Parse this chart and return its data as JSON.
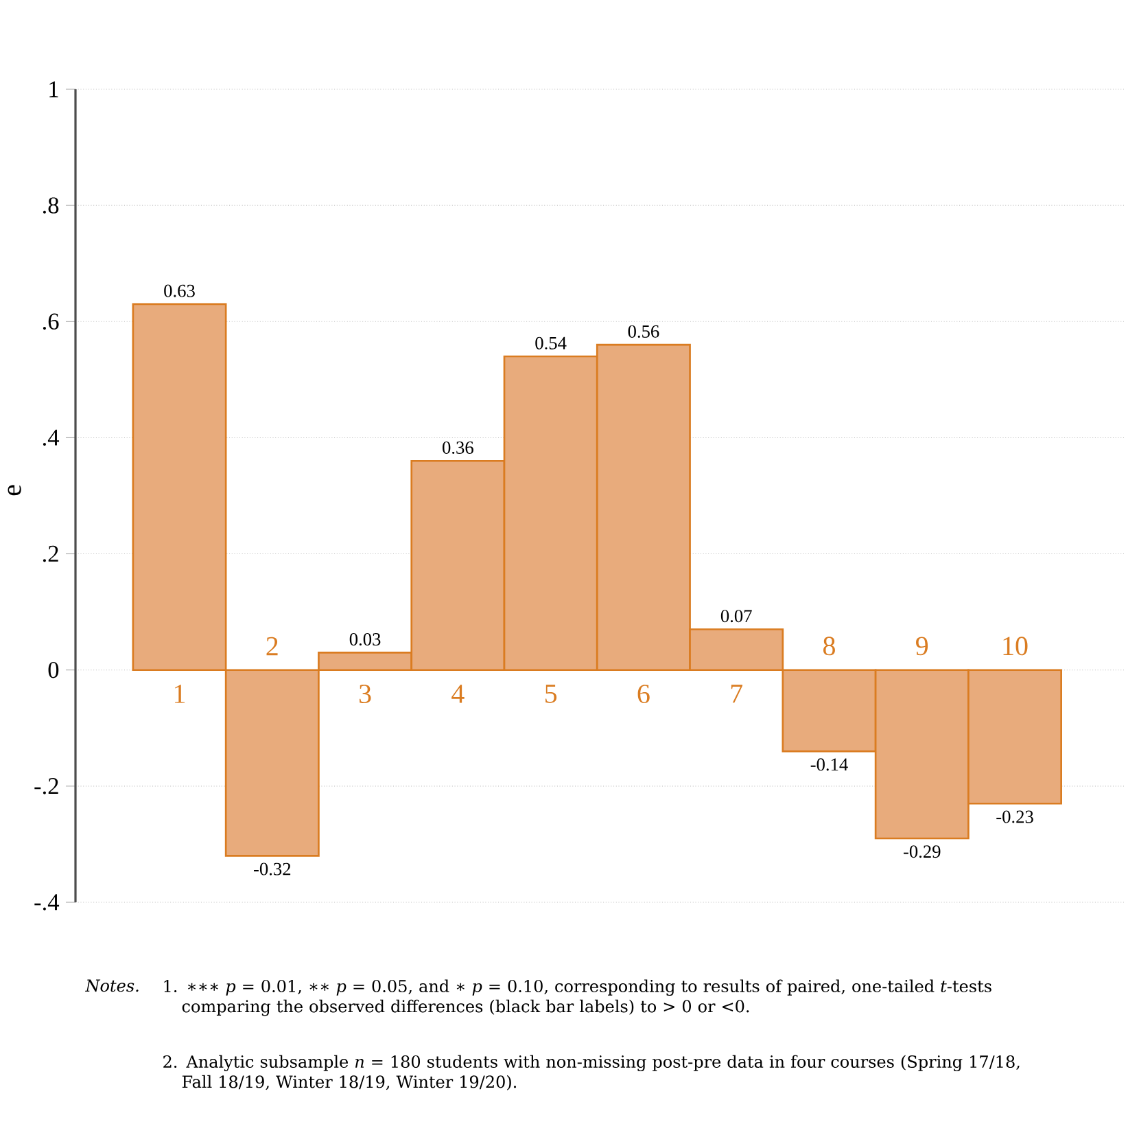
{
  "chart_data": {
    "type": "bar",
    "ylabel": "e",
    "categories": [
      "1",
      "2",
      "3",
      "4",
      "5",
      "6",
      "7",
      "8",
      "9",
      "10"
    ],
    "values": [
      0.63,
      -0.32,
      0.03,
      0.36,
      0.54,
      0.56,
      0.07,
      -0.14,
      -0.29,
      -0.23
    ],
    "color": "#e8ab7c",
    "ylim": [
      -0.4,
      1
    ],
    "yticks": [
      {
        "value": -0.4,
        "label": "-.4"
      },
      {
        "value": -0.2,
        "label": "-.2"
      },
      0,
      {
        "value": 0.2,
        "label": ".2"
      },
      {
        "value": 0.4,
        "label": ".4"
      },
      {
        "value": 0.6,
        "label": ".6"
      },
      {
        "value": 0.8,
        "label": ".8"
      },
      1
    ],
    "grid": "y",
    "data_labels": true,
    "annotations": [
      "*Notes.*",
      "1. ∗∗∗ *p* = 0.01, ∗∗ *p* = 0.05, and ∗ *p* = 0.10, corresponding to results of paired, one-tailed *t*-tests comparing the observed differences (black bar labels) to > 0 or <0.",
      "2. Analytic subsample *n* = 180 students with non-missing post-pre data in four courses (Spring 17/18, Fall 18/19, Winter 18/19, Winter 19/20)."
    ]
  }
}
